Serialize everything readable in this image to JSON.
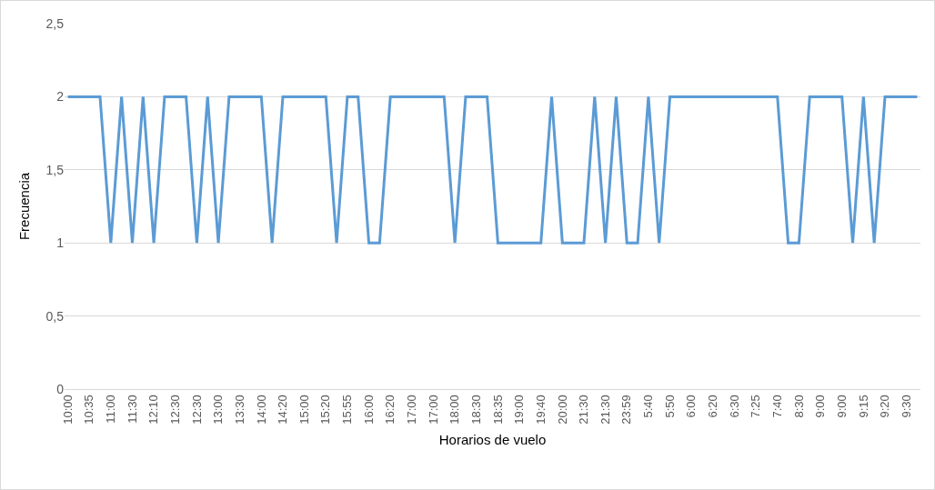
{
  "chart_data": {
    "type": "line",
    "xlabel": "Horarios de vuelo",
    "ylabel": "Frecuencia",
    "categories": [
      "10:00",
      null,
      "10:35",
      null,
      "11:00",
      null,
      "11:30",
      null,
      "12:10",
      null,
      "12:30",
      null,
      "12:30",
      null,
      "13:00",
      null,
      "13:30",
      null,
      "14:00",
      null,
      "14:20",
      null,
      "15:00",
      null,
      "15:20",
      null,
      "15:55",
      null,
      "16:00",
      null,
      "16:20",
      null,
      "17:00",
      null,
      "17:00",
      null,
      "18:00",
      null,
      "18:30",
      null,
      "18:35",
      null,
      "19:00",
      null,
      "19:40",
      null,
      "20:00",
      null,
      "21:30",
      null,
      "21:30",
      null,
      "23:59",
      null,
      "5:40",
      null,
      "5:50",
      null,
      "6:00",
      null,
      "6:20",
      null,
      "6:30",
      null,
      "7:25",
      null,
      "7:40",
      null,
      "8:30",
      null,
      "9:00",
      null,
      "9:00",
      null,
      "9:15",
      null,
      "9:20",
      null,
      "9:30",
      null
    ],
    "series": [
      {
        "color": "#5b9bd5",
        "values": [
          2,
          2,
          2,
          2,
          1,
          2,
          1,
          2,
          1,
          2,
          2,
          2,
          1,
          2,
          1,
          2,
          2,
          2,
          2,
          1,
          2,
          2,
          2,
          2,
          2,
          1,
          2,
          2,
          1,
          1,
          2,
          2,
          2,
          2,
          2,
          2,
          1,
          2,
          2,
          2,
          1,
          1,
          1,
          1,
          1,
          2,
          1,
          1,
          1,
          2,
          1,
          2,
          1,
          1,
          2,
          1,
          2,
          2,
          2,
          2,
          2,
          2,
          2,
          2,
          2,
          2,
          2,
          1,
          1,
          2,
          2,
          2,
          2,
          1,
          2,
          1,
          2,
          2,
          2,
          2
        ]
      }
    ],
    "ylim": [
      0,
      2.5
    ],
    "yticks": [
      0,
      {
        "value": 0.5,
        "label": "0,5"
      },
      1,
      {
        "value": 1.5,
        "label": "1,5"
      },
      2,
      {
        "value": 2.5,
        "label": "2,5"
      }
    ],
    "grid": "y",
    "marker": "none",
    "line_style": "solid"
  }
}
